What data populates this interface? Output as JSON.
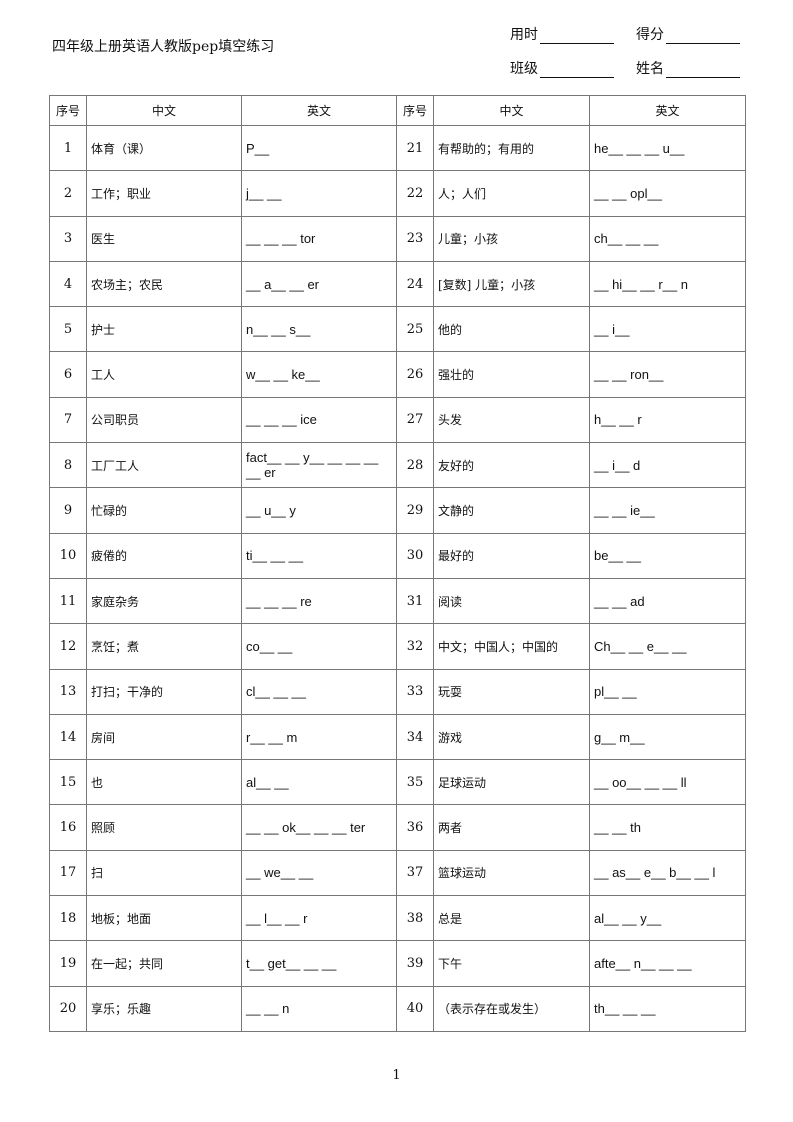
{
  "title": "四年级上册英语人教版pep填空练习",
  "meta": {
    "time": "用时",
    "score": "得分",
    "class": "班级",
    "name": "姓名"
  },
  "headers": {
    "num": "序号",
    "cn": "中文",
    "en": "英文"
  },
  "rows": [
    {
      "n": "1",
      "cn": "体育（课）",
      "en": "P__"
    },
    {
      "n": "2",
      "cn": "工作；职业",
      "en": "j__ __"
    },
    {
      "n": "3",
      "cn": "医生",
      "en": "__ __ __ tor"
    },
    {
      "n": "4",
      "cn": "农场主；农民",
      "en": "__ a__ __ er"
    },
    {
      "n": "5",
      "cn": "护士",
      "en": "n__ __ s__"
    },
    {
      "n": "6",
      "cn": "工人",
      "en": "w__ __ ke__"
    },
    {
      "n": "7",
      "cn": "公司职员",
      "en": "__ __ __ ice"
    },
    {
      "n": "8",
      "cn": "工厂工人",
      "en": "fact__ __ y__ __ __ __ __ er"
    },
    {
      "n": "9",
      "cn": "忙碌的",
      "en": "__ u__ y"
    },
    {
      "n": "10",
      "cn": "疲倦的",
      "en": "ti__ __ __"
    },
    {
      "n": "11",
      "cn": "家庭杂务",
      "en": "__ __ __ re"
    },
    {
      "n": "12",
      "cn": "烹饪；煮",
      "en": "co__ __"
    },
    {
      "n": "13",
      "cn": "打扫；干净的",
      "en": "cl__ __ __"
    },
    {
      "n": "14",
      "cn": "房间",
      "en": "r__ __ m"
    },
    {
      "n": "15",
      "cn": "也",
      "en": "al__ __"
    },
    {
      "n": "16",
      "cn": "照顾",
      "en": "__ __ ok__ __ __ ter"
    },
    {
      "n": "17",
      "cn": "扫",
      "en": "__ we__ __"
    },
    {
      "n": "18",
      "cn": "地板；地面",
      "en": "__ l__ __ r"
    },
    {
      "n": "19",
      "cn": "在一起；共同",
      "en": "t__ get__ __ __"
    },
    {
      "n": "20",
      "cn": "享乐；乐趣",
      "en": "__ __ n"
    },
    {
      "n": "21",
      "cn": "有帮助的；有用的",
      "en": "he__ __ __ u__"
    },
    {
      "n": "22",
      "cn": "人；人们",
      "en": "__ __ opl__"
    },
    {
      "n": "23",
      "cn": "儿童；小孩",
      "en": "ch__ __ __"
    },
    {
      "n": "24",
      "cn": "[复数] 儿童；小孩",
      "en": "__ hi__ __ r__ n"
    },
    {
      "n": "25",
      "cn": "他的",
      "en": "__ i__"
    },
    {
      "n": "26",
      "cn": "强壮的",
      "en": "__ __ ron__"
    },
    {
      "n": "27",
      "cn": "头发",
      "en": "h__ __ r"
    },
    {
      "n": "28",
      "cn": "友好的",
      "en": "__ i__ d"
    },
    {
      "n": "29",
      "cn": "文静的",
      "en": "__ __ ie__"
    },
    {
      "n": "30",
      "cn": "最好的",
      "en": "be__ __"
    },
    {
      "n": "31",
      "cn": "阅读",
      "en": "__ __ ad"
    },
    {
      "n": "32",
      "cn": "中文；中国人；中国的",
      "en": "Ch__ __ e__ __"
    },
    {
      "n": "33",
      "cn": "玩耍",
      "en": "pl__ __"
    },
    {
      "n": "34",
      "cn": "游戏",
      "en": "g__ m__"
    },
    {
      "n": "35",
      "cn": "足球运动",
      "en": "__ oo__ __ __ ll"
    },
    {
      "n": "36",
      "cn": "两者",
      "en": "__ __ th"
    },
    {
      "n": "37",
      "cn": "篮球运动",
      "en": "__ as__ e__ b__ __ l"
    },
    {
      "n": "38",
      "cn": "总是",
      "en": "al__ __ y__"
    },
    {
      "n": "39",
      "cn": "下午",
      "en": "afte__ n__ __ __"
    },
    {
      "n": "40",
      "cn": "（表示存在或发生）",
      "en": "th__ __ __"
    }
  ],
  "page_number": "1"
}
